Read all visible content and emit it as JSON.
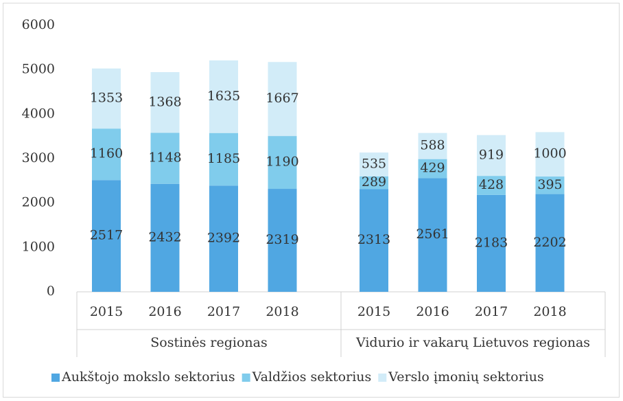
{
  "chart_data": {
    "type": "stacked_bar",
    "categories": [
      "2015",
      "2016",
      "2017",
      "2018",
      "2015",
      "2016",
      "2017",
      "2018"
    ],
    "groups": [
      "Sostinės regionas",
      "Vidurio ir vakarų Lietuvos regionas"
    ],
    "series": [
      {
        "name": "Aukštojo mokslo sektorius",
        "color": "#50a7e2",
        "values": [
          2517,
          2432,
          2392,
          2319,
          2313,
          2561,
          2183,
          2202
        ]
      },
      {
        "name": "Valdžios sektorius",
        "color": "#80ccec",
        "values": [
          1160,
          1148,
          1185,
          1190,
          289,
          429,
          428,
          395
        ]
      },
      {
        "name": "Verslo įmonių sektorius",
        "color": "#d2ecf8",
        "values": [
          1353,
          1368,
          1635,
          1667,
          535,
          588,
          919,
          1000
        ]
      }
    ],
    "ylim": [
      0,
      6000
    ],
    "yticks": [
      0,
      1000,
      2000,
      3000,
      4000,
      5000,
      6000
    ],
    "legend": "bottom"
  }
}
